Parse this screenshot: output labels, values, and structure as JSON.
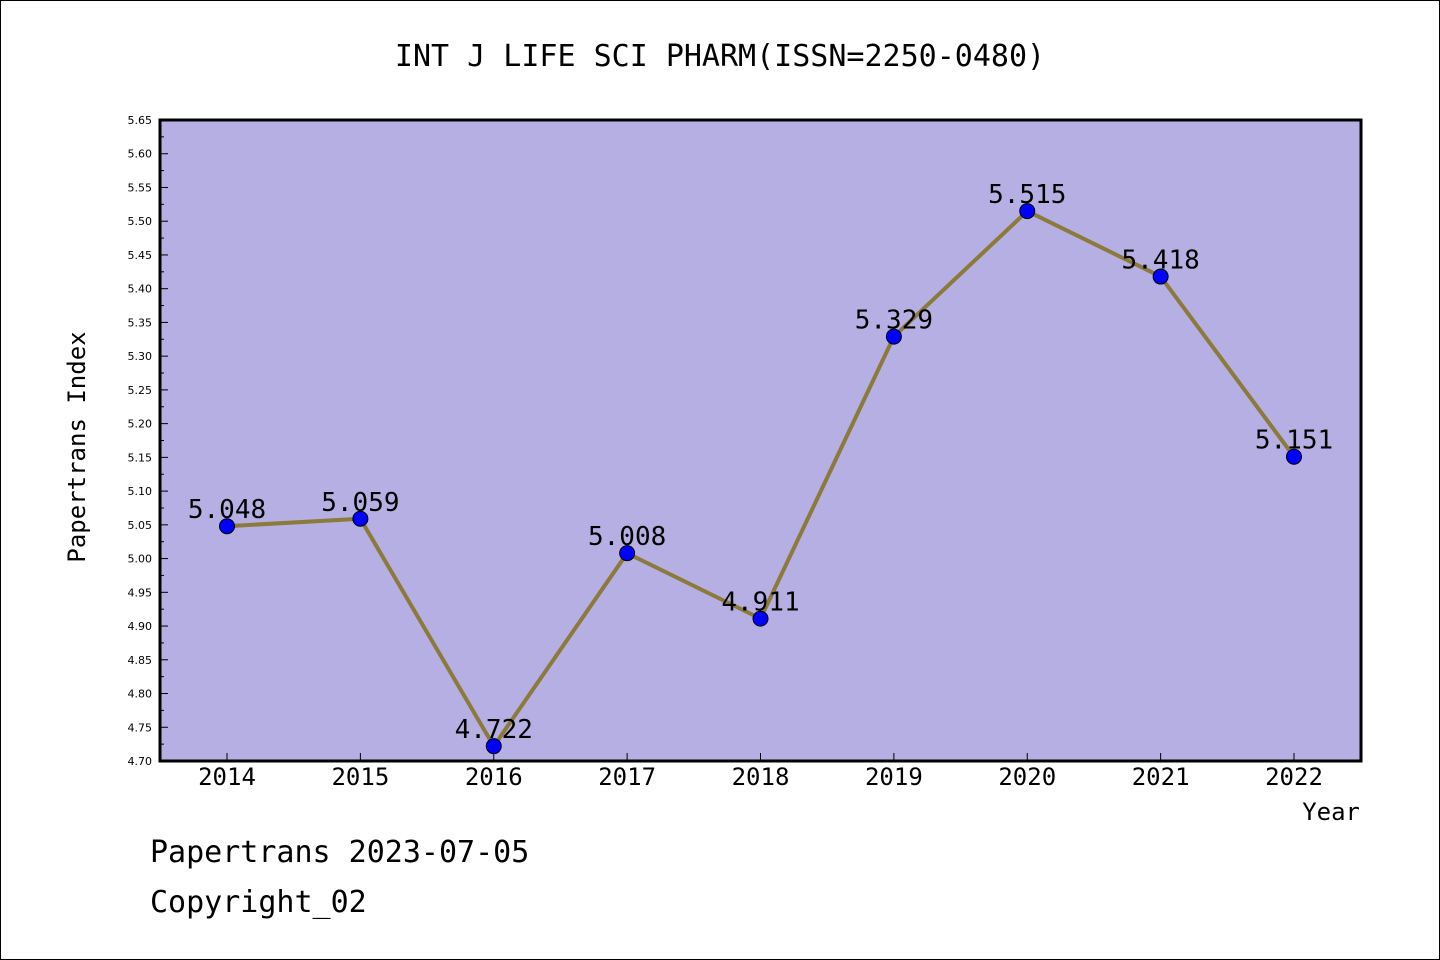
{
  "chart_data": {
    "type": "line",
    "title": "INT J LIFE SCI PHARM(ISSN=2250-0480)",
    "xlabel": "Year",
    "ylabel": "Papertrans Index",
    "categories": [
      "2014",
      "2015",
      "2016",
      "2017",
      "2018",
      "2019",
      "2020",
      "2021",
      "2022"
    ],
    "series": [
      {
        "values": [
          5.048,
          5.059,
          4.722,
          5.008,
          4.911,
          5.329,
          5.515,
          5.418,
          5.151
        ],
        "labels": [
          "5.048",
          "5.059",
          "4.722",
          "5.008",
          "4.911",
          "5.329",
          "5.515",
          "5.418",
          "5.151"
        ]
      }
    ],
    "ylim": [
      4.7,
      5.65
    ],
    "yticks": [
      "4.70",
      "4.75",
      "4.80",
      "4.85",
      "4.90",
      "4.95",
      "5.00",
      "5.05",
      "5.10",
      "5.15",
      "5.20",
      "5.25",
      "5.30",
      "5.35",
      "5.40",
      "5.45",
      "5.50",
      "5.55",
      "5.60",
      "5.65"
    ],
    "grid": false,
    "colors": {
      "plot_background": "#b5afe3",
      "line": "#8b7a3a",
      "marker": "#0000ff"
    }
  },
  "footer": {
    "line1": "Papertrans 2023-07-05",
    "line2": "Copyright_02"
  }
}
